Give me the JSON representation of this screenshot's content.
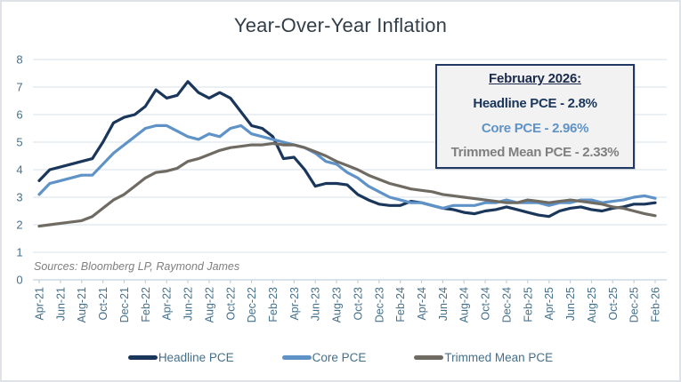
{
  "title": "Year-Over-Year Inflation",
  "sources": "Sources: Bloomberg LP, Raymond James",
  "annotation": {
    "title": "February 2026:",
    "lines": [
      {
        "text": "Headline PCE - 2.8%",
        "color": "#1a365a"
      },
      {
        "text": "Core PCE - 2.96%",
        "color": "#5f93c8"
      },
      {
        "text": "Trimmed Mean PCE - 2.33%",
        "color": "#7f7f7f"
      }
    ]
  },
  "colors": {
    "title": "#333f48",
    "axis_labels": "#46718a",
    "gridline": "#dde6ee",
    "tick": "#c3d2dd",
    "frame_border": "#dfe3e8",
    "box_bg": "#f2f2f2",
    "box_border": "#1f3864",
    "sources": "#7f7f7f"
  },
  "chart_data": {
    "type": "line",
    "title": "Year-Over-Year Inflation",
    "xlabel": "",
    "ylabel": "",
    "ylim": [
      0,
      8
    ],
    "y_ticks": [
      0,
      1,
      2,
      3,
      4,
      5,
      6,
      7,
      8
    ],
    "grid": true,
    "legend_position": "bottom",
    "x_tick_every": 2,
    "x": [
      "Apr-21",
      "May-21",
      "Jun-21",
      "Jul-21",
      "Aug-21",
      "Sep-21",
      "Oct-21",
      "Nov-21",
      "Dec-21",
      "Jan-22",
      "Feb-22",
      "Mar-22",
      "Apr-22",
      "May-22",
      "Jun-22",
      "Jul-22",
      "Aug-22",
      "Sep-22",
      "Oct-22",
      "Nov-22",
      "Dec-22",
      "Jan-23",
      "Feb-23",
      "Mar-23",
      "Apr-23",
      "May-23",
      "Jun-23",
      "Jul-23",
      "Aug-23",
      "Sep-23",
      "Oct-23",
      "Nov-23",
      "Dec-23",
      "Jan-24",
      "Feb-24",
      "Mar-24",
      "Apr-24",
      "May-24",
      "Jun-24",
      "Jul-24",
      "Aug-24",
      "Sep-24",
      "Oct-24",
      "Nov-24",
      "Dec-24",
      "Jan-25",
      "Feb-25",
      "Mar-25",
      "Apr-25",
      "May-25",
      "Jun-25",
      "Jul-25",
      "Aug-25",
      "Sep-25",
      "Oct-25",
      "Nov-25",
      "Dec-25",
      "Jan-26",
      "Feb-26"
    ],
    "series": [
      {
        "name": "Headline PCE",
        "color": "#1a365a",
        "values": [
          3.6,
          4.0,
          4.1,
          4.2,
          4.3,
          4.4,
          5.0,
          5.7,
          5.9,
          6.0,
          6.3,
          6.9,
          6.6,
          6.7,
          7.2,
          6.8,
          6.6,
          6.8,
          6.6,
          6.1,
          5.6,
          5.5,
          5.2,
          4.4,
          4.45,
          4.0,
          3.4,
          3.5,
          3.5,
          3.45,
          3.1,
          2.9,
          2.75,
          2.7,
          2.7,
          2.85,
          2.8,
          2.7,
          2.6,
          2.55,
          2.45,
          2.4,
          2.5,
          2.55,
          2.65,
          2.55,
          2.45,
          2.35,
          2.3,
          2.5,
          2.6,
          2.65,
          2.55,
          2.5,
          2.6,
          2.65,
          2.75,
          2.75,
          2.8
        ]
      },
      {
        "name": "Core PCE",
        "color": "#5f93c8",
        "values": [
          3.1,
          3.5,
          3.6,
          3.7,
          3.8,
          3.8,
          4.2,
          4.6,
          4.9,
          5.2,
          5.5,
          5.6,
          5.6,
          5.4,
          5.2,
          5.1,
          5.3,
          5.2,
          5.5,
          5.6,
          5.3,
          5.2,
          5.1,
          5.0,
          4.9,
          4.8,
          4.6,
          4.3,
          4.2,
          3.9,
          3.7,
          3.4,
          3.2,
          3.0,
          2.9,
          2.8,
          2.8,
          2.7,
          2.6,
          2.7,
          2.7,
          2.7,
          2.8,
          2.8,
          2.9,
          2.8,
          2.8,
          2.8,
          2.7,
          2.8,
          2.8,
          2.9,
          2.9,
          2.8,
          2.85,
          2.9,
          3.0,
          3.05,
          2.96
        ]
      },
      {
        "name": "Trimmed Mean PCE",
        "color": "#6f6b63",
        "values": [
          1.95,
          2.0,
          2.05,
          2.1,
          2.15,
          2.3,
          2.6,
          2.9,
          3.1,
          3.4,
          3.7,
          3.9,
          3.95,
          4.05,
          4.3,
          4.4,
          4.55,
          4.7,
          4.8,
          4.85,
          4.9,
          4.9,
          4.95,
          4.9,
          4.9,
          4.8,
          4.65,
          4.5,
          4.3,
          4.15,
          4.0,
          3.8,
          3.65,
          3.5,
          3.4,
          3.3,
          3.25,
          3.2,
          3.1,
          3.05,
          3.0,
          2.95,
          2.9,
          2.85,
          2.8,
          2.8,
          2.9,
          2.85,
          2.8,
          2.85,
          2.9,
          2.85,
          2.8,
          2.75,
          2.65,
          2.6,
          2.5,
          2.4,
          2.33
        ]
      }
    ]
  }
}
